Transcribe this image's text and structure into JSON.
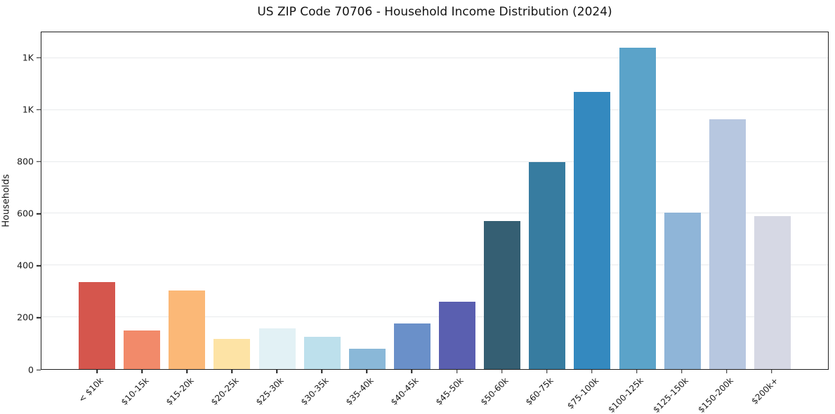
{
  "chart_data": {
    "type": "bar",
    "title": "US ZIP Code 70706 - Household Income Distribution (2024)",
    "xlabel": "",
    "ylabel": "Households",
    "categories": [
      "< $10k",
      "$10-15k",
      "$15-20k",
      "$20-25k",
      "$25-30k",
      "$30-35k",
      "$35-40k",
      "$40-45k",
      "$45-50k",
      "$50-60k",
      "$60-75k",
      "$75-100k",
      "$100-125k",
      "$125-150k",
      "$150-200k",
      "$200k+"
    ],
    "values": [
      335,
      150,
      303,
      116,
      158,
      124,
      78,
      175,
      260,
      572,
      800,
      1070,
      1240,
      605,
      965,
      590
    ],
    "bar_colors": [
      "#d5564d",
      "#f28a6a",
      "#fbb877",
      "#fde3a5",
      "#e2f1f5",
      "#bde0ec",
      "#8ab8d8",
      "#6a90c9",
      "#5a5fb0",
      "#355f73",
      "#377ca0",
      "#3489bf",
      "#5ba3c9",
      "#8fb5d8",
      "#b7c7e0",
      "#d6d8e4"
    ],
    "ylim": [
      0,
      1300
    ],
    "yticks": {
      "values": [
        0,
        200,
        400,
        600,
        800,
        1000,
        1200
      ],
      "labels": [
        "0",
        "200",
        "400",
        "600",
        "800",
        "1K",
        "1K"
      ]
    },
    "x_tick_rotation_deg": 45,
    "grid": "horizontal",
    "legend": "none",
    "background_color": "#ffffff",
    "axis_color": "#1f1f1f",
    "grid_color": "#e8eaec"
  }
}
